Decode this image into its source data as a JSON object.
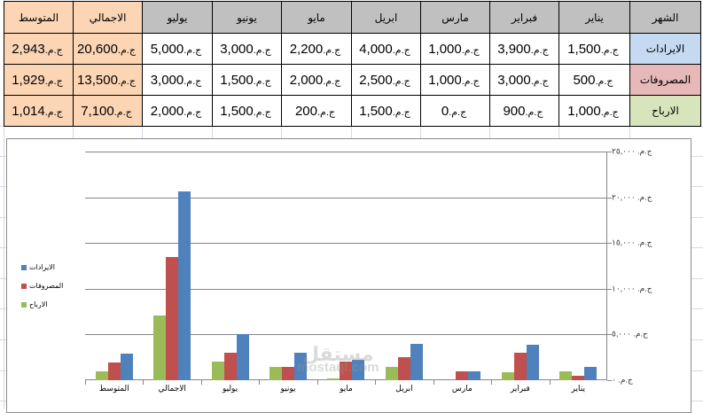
{
  "table": {
    "headers": [
      "الشهر",
      "يناير",
      "فبراير",
      "مارس",
      "ابريل",
      "مايو",
      "يونيو",
      "يوليو",
      "الاجمالي",
      "المتوسط"
    ],
    "currency": "ج.م.",
    "rows": [
      {
        "label": "الايرادات",
        "values": [
          "1,500",
          "3,900",
          "1,000",
          "4,000",
          "2,200",
          "3,000",
          "5,000"
        ],
        "total": "20,600",
        "average": "2,943"
      },
      {
        "label": "المصروفات",
        "values": [
          "500",
          "3,000",
          "1,000",
          "2,500",
          "2,000",
          "1,500",
          "3,000"
        ],
        "total": "13,500",
        "average": "1,929"
      },
      {
        "label": "الارباح",
        "values": [
          "1,000",
          "900",
          "0",
          "1,500",
          "200",
          "1,500",
          "2,000"
        ],
        "total": "7,100",
        "average": "1,014"
      }
    ]
  },
  "colors": {
    "header_bg": "#c0c0c0",
    "summary_bg": "#fcd5b4",
    "revenue": "#4f81bd",
    "expenses": "#c0504d",
    "profit": "#9bbb59",
    "revenue_label_bg": "#c5d9f1",
    "expenses_label_bg": "#e6b9b8",
    "profit_label_bg": "#d8e4bc"
  },
  "chart_data": {
    "type": "bar",
    "title": "",
    "xlabel": "",
    "ylabel": "",
    "categories": [
      "يناير",
      "فبراير",
      "مارس",
      "ابريل",
      "مايو",
      "يونيو",
      "يوليو",
      "الاجمالي",
      "المتوسط"
    ],
    "category_order_note": "right-to-left",
    "series": [
      {
        "name": "الارباح",
        "color": "#9bbb59",
        "values": [
          1000,
          900,
          0,
          1500,
          200,
          1500,
          2000,
          7100,
          1014
        ]
      },
      {
        "name": "المصروفات",
        "color": "#c0504d",
        "values": [
          500,
          3000,
          1000,
          2500,
          2000,
          1500,
          3000,
          13500,
          1929
        ]
      },
      {
        "name": "الايرادات",
        "color": "#4f81bd",
        "values": [
          1500,
          3900,
          1000,
          4000,
          2200,
          3000,
          5000,
          20600,
          2943
        ]
      }
    ],
    "ylim": [
      0,
      25000
    ],
    "yticks": [
      "ج.م. ٠",
      "ج.م. ٥,٠٠٠",
      "ج.م. ١٠,٠٠٠",
      "ج.م. ١٥,٠٠٠",
      "ج.م. ٢٠,٠٠٠",
      "ج.م. ٢٥,٠٠٠"
    ],
    "ytick_values": [
      0,
      5000,
      10000,
      15000,
      20000,
      25000
    ],
    "grid": true,
    "legend": {
      "position": "left",
      "entries": [
        "الايرادات",
        "المصروفات",
        "الارباح"
      ]
    }
  },
  "watermark": {
    "arabic": "مستقل",
    "latin": "mostaql.com"
  }
}
